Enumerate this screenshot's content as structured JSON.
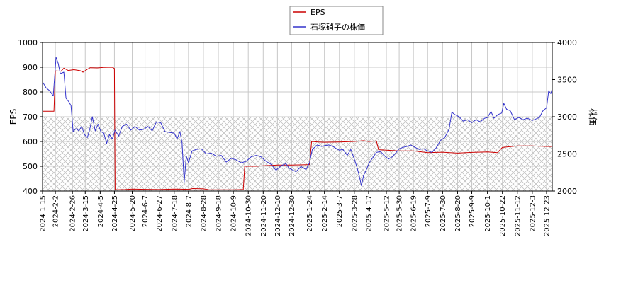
{
  "chart_data": {
    "type": "line",
    "title": "",
    "legend": {
      "placement": "top-center",
      "entries": [
        {
          "label": "EPS",
          "color": "#cc0000"
        },
        {
          "label": "石塚硝子の株価",
          "color": "#3333cc"
        }
      ]
    },
    "ylabel_left": "EPS",
    "ylabel_right": "株価",
    "ylim_left": [
      400,
      1000
    ],
    "ylim_right": [
      2000,
      4000
    ],
    "yticks_left": [
      "400",
      "500",
      "600",
      "700",
      "800",
      "900",
      "1000"
    ],
    "yticks_right": [
      "2000",
      "2500",
      "3000",
      "3500",
      "4000"
    ],
    "xlim": [
      "2024-01-15",
      "2025-12-31"
    ],
    "xticks": [
      "2024-1-15",
      "2024-2-2",
      "2024-2-26",
      "2024-3-15",
      "2024-4-5",
      "2024-4-25",
      "2024-5-20",
      "2024-6-7",
      "2024-6-27",
      "2024-7-18",
      "2024-8-7",
      "2024-8-28",
      "2024-9-18",
      "2024-10-9",
      "2024-10-30",
      "2024-11-20",
      "2024-12-10",
      "2024-12-30",
      "2025-1-24",
      "2025-2-14",
      "2025-3-7",
      "2025-3-28",
      "2025-4-17",
      "2025-5-12",
      "2025-5-30",
      "2025-6-19",
      "2025-7-9",
      "2025-7-30",
      "2025-8-20",
      "2025-9-9",
      "2025-10-1",
      "2025-10-22",
      "2025-11-12",
      "2025-12-3",
      "2025-12-23"
    ],
    "grid": true,
    "hatched_band_left": [
      400,
      700
    ],
    "series": [
      {
        "name": "EPS",
        "axis": "left",
        "color": "#cc0000",
        "points": [
          [
            "2024-01-15",
            722
          ],
          [
            "2024-01-31",
            722
          ],
          [
            "2024-02-02",
            885
          ],
          [
            "2024-02-10",
            884
          ],
          [
            "2024-02-14",
            896
          ],
          [
            "2024-02-20",
            887
          ],
          [
            "2024-02-28",
            890
          ],
          [
            "2024-03-08",
            886
          ],
          [
            "2024-03-12",
            880
          ],
          [
            "2024-03-18",
            892
          ],
          [
            "2024-03-22",
            898
          ],
          [
            "2024-04-01",
            897
          ],
          [
            "2024-04-10",
            899
          ],
          [
            "2024-04-22",
            900
          ],
          [
            "2024-04-25",
            895
          ],
          [
            "2024-04-26",
            405
          ],
          [
            "2024-05-10",
            406
          ],
          [
            "2024-05-20",
            408
          ],
          [
            "2024-06-07",
            407
          ],
          [
            "2024-06-27",
            406
          ],
          [
            "2024-07-18",
            408
          ],
          [
            "2024-08-07",
            407
          ],
          [
            "2024-08-13",
            410
          ],
          [
            "2024-08-28",
            409
          ],
          [
            "2024-09-05",
            405
          ],
          [
            "2024-09-18",
            405
          ],
          [
            "2024-10-09",
            405
          ],
          [
            "2024-10-23",
            406
          ],
          [
            "2024-10-25",
            500
          ],
          [
            "2024-11-10",
            500
          ],
          [
            "2024-11-20",
            502
          ],
          [
            "2024-12-10",
            505
          ],
          [
            "2024-12-30",
            505
          ],
          [
            "2025-01-15",
            506
          ],
          [
            "2025-01-24",
            507
          ],
          [
            "2025-01-27",
            600
          ],
          [
            "2025-02-05",
            598
          ],
          [
            "2025-02-14",
            597
          ],
          [
            "2025-03-07",
            598
          ],
          [
            "2025-03-28",
            600
          ],
          [
            "2025-04-10",
            603
          ],
          [
            "2025-04-17",
            600
          ],
          [
            "2025-04-28",
            602
          ],
          [
            "2025-05-01",
            567
          ],
          [
            "2025-05-12",
            565
          ],
          [
            "2025-05-30",
            562
          ],
          [
            "2025-06-19",
            562
          ],
          [
            "2025-07-09",
            555
          ],
          [
            "2025-07-30",
            557
          ],
          [
            "2025-08-20",
            553
          ],
          [
            "2025-09-09",
            556
          ],
          [
            "2025-10-01",
            558
          ],
          [
            "2025-10-15",
            555
          ],
          [
            "2025-10-22",
            576
          ],
          [
            "2025-11-12",
            582
          ],
          [
            "2025-12-03",
            582
          ],
          [
            "2025-12-23",
            580
          ],
          [
            "2025-12-31",
            580
          ]
        ]
      },
      {
        "name": "石塚硝子の株価",
        "axis": "right",
        "color": "#3333cc",
        "points": [
          [
            "2024-01-15",
            3470
          ],
          [
            "2024-01-20",
            3390
          ],
          [
            "2024-01-25",
            3350
          ],
          [
            "2024-01-30",
            3280
          ],
          [
            "2024-02-03",
            3800
          ],
          [
            "2024-02-06",
            3720
          ],
          [
            "2024-02-09",
            3580
          ],
          [
            "2024-02-14",
            3600
          ],
          [
            "2024-02-17",
            3250
          ],
          [
            "2024-02-21",
            3200
          ],
          [
            "2024-02-24",
            3150
          ],
          [
            "2024-02-27",
            2800
          ],
          [
            "2024-03-02",
            2840
          ],
          [
            "2024-03-06",
            2810
          ],
          [
            "2024-03-10",
            2870
          ],
          [
            "2024-03-14",
            2760
          ],
          [
            "2024-03-18",
            2720
          ],
          [
            "2024-03-22",
            2860
          ],
          [
            "2024-03-25",
            3000
          ],
          [
            "2024-03-29",
            2810
          ],
          [
            "2024-04-02",
            2900
          ],
          [
            "2024-04-06",
            2800
          ],
          [
            "2024-04-10",
            2780
          ],
          [
            "2024-04-14",
            2640
          ],
          [
            "2024-04-18",
            2760
          ],
          [
            "2024-04-22",
            2700
          ],
          [
            "2024-04-26",
            2820
          ],
          [
            "2024-05-01",
            2740
          ],
          [
            "2024-05-06",
            2870
          ],
          [
            "2024-05-12",
            2900
          ],
          [
            "2024-05-18",
            2820
          ],
          [
            "2024-05-24",
            2870
          ],
          [
            "2024-05-30",
            2820
          ],
          [
            "2024-06-05",
            2830
          ],
          [
            "2024-06-11",
            2870
          ],
          [
            "2024-06-17",
            2810
          ],
          [
            "2024-06-23",
            2930
          ],
          [
            "2024-06-29",
            2920
          ],
          [
            "2024-07-05",
            2800
          ],
          [
            "2024-07-11",
            2790
          ],
          [
            "2024-07-18",
            2780
          ],
          [
            "2024-07-22",
            2700
          ],
          [
            "2024-07-26",
            2800
          ],
          [
            "2024-07-29",
            2650
          ],
          [
            "2024-08-01",
            2120
          ],
          [
            "2024-08-04",
            2470
          ],
          [
            "2024-08-07",
            2380
          ],
          [
            "2024-08-12",
            2540
          ],
          [
            "2024-08-18",
            2560
          ],
          [
            "2024-08-25",
            2570
          ],
          [
            "2024-09-01",
            2500
          ],
          [
            "2024-09-08",
            2510
          ],
          [
            "2024-09-15",
            2470
          ],
          [
            "2024-09-22",
            2480
          ],
          [
            "2024-09-29",
            2390
          ],
          [
            "2024-10-06",
            2440
          ],
          [
            "2024-10-13",
            2420
          ],
          [
            "2024-10-20",
            2380
          ],
          [
            "2024-10-27",
            2400
          ],
          [
            "2024-11-03",
            2460
          ],
          [
            "2024-11-10",
            2480
          ],
          [
            "2024-11-17",
            2460
          ],
          [
            "2024-11-24",
            2400
          ],
          [
            "2024-12-01",
            2360
          ],
          [
            "2024-12-08",
            2280
          ],
          [
            "2024-12-15",
            2340
          ],
          [
            "2024-12-22",
            2370
          ],
          [
            "2024-12-26",
            2310
          ],
          [
            "2024-12-30",
            2290
          ],
          [
            "2025-01-05",
            2260
          ],
          [
            "2025-01-12",
            2330
          ],
          [
            "2025-01-19",
            2290
          ],
          [
            "2025-01-24",
            2380
          ],
          [
            "2025-01-28",
            2560
          ],
          [
            "2025-02-04",
            2620
          ],
          [
            "2025-02-10",
            2600
          ],
          [
            "2025-02-14",
            2610
          ],
          [
            "2025-02-20",
            2620
          ],
          [
            "2025-02-26",
            2600
          ],
          [
            "2025-03-03",
            2570
          ],
          [
            "2025-03-07",
            2550
          ],
          [
            "2025-03-12",
            2560
          ],
          [
            "2025-03-18",
            2480
          ],
          [
            "2025-03-23",
            2560
          ],
          [
            "2025-03-28",
            2430
          ],
          [
            "2025-04-01",
            2310
          ],
          [
            "2025-04-04",
            2200
          ],
          [
            "2025-04-07",
            2070
          ],
          [
            "2025-04-10",
            2210
          ],
          [
            "2025-04-14",
            2290
          ],
          [
            "2025-04-18",
            2380
          ],
          [
            "2025-04-23",
            2450
          ],
          [
            "2025-04-28",
            2520
          ],
          [
            "2025-05-04",
            2530
          ],
          [
            "2025-05-10",
            2470
          ],
          [
            "2025-05-15",
            2430
          ],
          [
            "2025-05-20",
            2460
          ],
          [
            "2025-05-25",
            2510
          ],
          [
            "2025-05-30",
            2570
          ],
          [
            "2025-06-05",
            2590
          ],
          [
            "2025-06-10",
            2600
          ],
          [
            "2025-06-15",
            2620
          ],
          [
            "2025-06-21",
            2590
          ],
          [
            "2025-06-27",
            2560
          ],
          [
            "2025-07-03",
            2570
          ],
          [
            "2025-07-09",
            2540
          ],
          [
            "2025-07-15",
            2520
          ],
          [
            "2025-07-21",
            2580
          ],
          [
            "2025-07-27",
            2680
          ],
          [
            "2025-08-02",
            2720
          ],
          [
            "2025-08-08",
            2830
          ],
          [
            "2025-08-12",
            3060
          ],
          [
            "2025-08-16",
            3030
          ],
          [
            "2025-08-22",
            3000
          ],
          [
            "2025-08-28",
            2940
          ],
          [
            "2025-09-03",
            2960
          ],
          [
            "2025-09-09",
            2920
          ],
          [
            "2025-09-15",
            2960
          ],
          [
            "2025-09-21",
            2930
          ],
          [
            "2025-09-27",
            2980
          ],
          [
            "2025-10-01",
            2990
          ],
          [
            "2025-10-06",
            3070
          ],
          [
            "2025-10-10",
            2980
          ],
          [
            "2025-10-16",
            3030
          ],
          [
            "2025-10-21",
            3050
          ],
          [
            "2025-10-24",
            3180
          ],
          [
            "2025-10-28",
            3100
          ],
          [
            "2025-11-02",
            3080
          ],
          [
            "2025-11-08",
            2960
          ],
          [
            "2025-11-14",
            2990
          ],
          [
            "2025-11-20",
            2960
          ],
          [
            "2025-11-26",
            2980
          ],
          [
            "2025-12-03",
            2950
          ],
          [
            "2025-12-08",
            2970
          ],
          [
            "2025-12-13",
            2990
          ],
          [
            "2025-12-18",
            3080
          ],
          [
            "2025-12-23",
            3120
          ],
          [
            "2025-12-26",
            3350
          ],
          [
            "2025-12-29",
            3310
          ],
          [
            "2025-12-31",
            3380
          ]
        ]
      }
    ]
  }
}
